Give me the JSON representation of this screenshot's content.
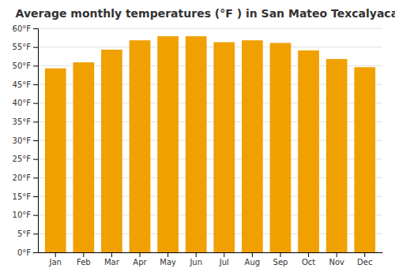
{
  "chart_data": {
    "type": "bar",
    "title": "Average monthly temperatures (°F ) in San Mateo Texcalyacac",
    "categories": [
      "Jan",
      "Feb",
      "Mar",
      "Apr",
      "May",
      "Jun",
      "Jul",
      "Aug",
      "Sep",
      "Oct",
      "Nov",
      "Dec"
    ],
    "values": [
      49.3,
      50.9,
      54.3,
      56.8,
      57.9,
      57.9,
      56.3,
      56.8,
      56.1,
      54.1,
      51.8,
      49.6
    ],
    "color": "#F0A000",
    "ylim": [
      0,
      60
    ],
    "yticks": [
      {
        "value": 0,
        "label": "0°F"
      },
      {
        "value": 5,
        "label": "5°F"
      },
      {
        "value": 10,
        "label": "10°F"
      },
      {
        "value": 15,
        "label": "15°F"
      },
      {
        "value": 20,
        "label": "20°F"
      },
      {
        "value": 25,
        "label": "25°F"
      },
      {
        "value": 30,
        "label": "30°F"
      },
      {
        "value": 35,
        "label": "35°F"
      },
      {
        "value": 40,
        "label": "40°F"
      },
      {
        "value": 45,
        "label": "45°F"
      },
      {
        "value": 50,
        "label": "50°F"
      },
      {
        "value": 55,
        "label": "55°F"
      },
      {
        "value": 60,
        "label": "60°F"
      }
    ],
    "grid": true
  }
}
